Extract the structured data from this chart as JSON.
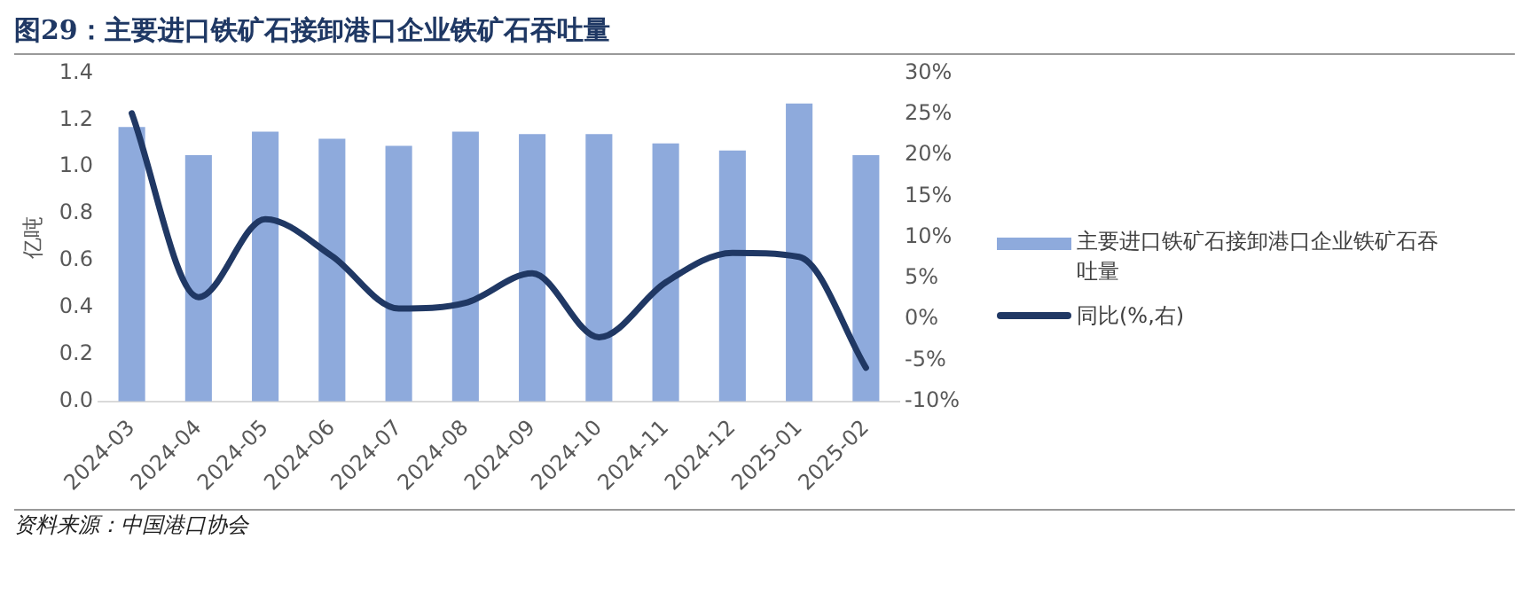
{
  "chart_data": {
    "type": "bar",
    "title": "图29：主要进口铁矿石接卸港口企业铁矿石吞吐量",
    "ylabel": "亿吨",
    "annotations": [
      "资料来源：中国港口协会"
    ],
    "categories": [
      "2024-03",
      "2024-04",
      "2024-05",
      "2024-06",
      "2024-07",
      "2024-08",
      "2024-09",
      "2024-10",
      "2024-11",
      "2024-12",
      "2025-01",
      "2025-02"
    ],
    "series": [
      {
        "name": "主要进口铁矿石接卸港口企业铁矿石吞吐量",
        "color": "#8eaadc",
        "values": [
          1.17,
          1.05,
          1.15,
          1.12,
          1.09,
          1.15,
          1.14,
          1.14,
          1.1,
          1.07,
          1.27,
          1.05
        ]
      },
      {
        "name": "同比(%,右)",
        "type": "line",
        "axis": "y2",
        "color": "#203864",
        "values": [
          25.1,
          2.7,
          12.2,
          7.7,
          1.3,
          2.0,
          5.6,
          -2.2,
          4.5,
          8.1,
          7.6,
          -5.9
        ]
      }
    ],
    "ylim": [
      0,
      1.4
    ],
    "yticks": [
      {
        "value": 0,
        "label": "0.0"
      },
      {
        "value": 0.2,
        "label": "0.2"
      },
      {
        "value": 0.4,
        "label": "0.4"
      },
      {
        "value": 0.6,
        "label": "0.6"
      },
      {
        "value": 0.8,
        "label": "0.8"
      },
      {
        "value": 1,
        "label": "1.0"
      },
      {
        "value": 1.2,
        "label": "1.2"
      },
      {
        "value": 1.4,
        "label": "1.4"
      }
    ],
    "y2lim": [
      -10,
      30
    ],
    "y2ticks": [
      {
        "value": -10,
        "label": "-10%"
      },
      {
        "value": -5,
        "label": "-5%"
      },
      {
        "value": 0,
        "label": "0%"
      },
      {
        "value": 5,
        "label": "5%"
      },
      {
        "value": 10,
        "label": "10%"
      },
      {
        "value": 15,
        "label": "15%"
      },
      {
        "value": 20,
        "label": "20%"
      },
      {
        "value": 25,
        "label": "25%"
      },
      {
        "value": 30,
        "label": "30%"
      }
    ],
    "grid": false,
    "legend": "right",
    "marker": "none",
    "line_style": "solid"
  }
}
